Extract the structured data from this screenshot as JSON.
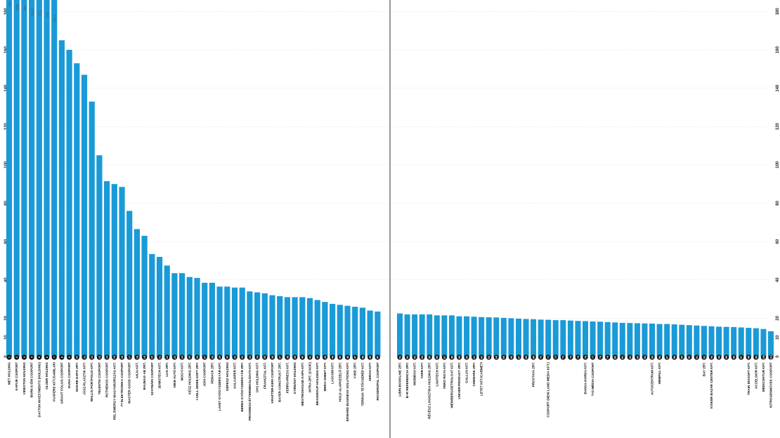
{
  "chart_data": {
    "type": "bar",
    "bar_color": "#1a9ad7",
    "divider_color": "#333333",
    "rank_marker_color": "#111111",
    "y_ticks": [
      0,
      10,
      20,
      40,
      60,
      80,
      100,
      120,
      140,
      160,
      180
    ],
    "ylim": [
      0,
      186
    ],
    "grid": true,
    "left_panel": {
      "categories": [
        "MET HOLDING",
        "KAFIJE CSOPORT",
        "VIDEOTON HOLDING",
        "BORKAI ÉM CSOPORT",
        "DAYTON INVESTMENTS (HOLDING)",
        "OLGER HOLDING",
        "FUXFERE KFT./SAMILARI",
        "GRAVIT FOLIUS CSOPORT",
        "DUNA CSOPORT",
        "MAKRE EXPO ZRT.",
        "JÁSZ-PLASZTIK KFT.",
        "WALLIS PORTFOLIO KFT.",
        "TELENTIS CSOPORT",
        "ROTHENOS CSOPORT",
        "REL EMERGY MAGYARORSZÁG KFT.",
        "77 ELEKTRONIKA CSOPORT",
        "MASTER GOOD CSOPORT",
        "ANJA KFT.",
        "BAUMAG AB ZRT.",
        "SZATMÁRI CSOPORT",
        "2DIMSTECH KFT.",
        "LUG ZRT.",
        "HBW AUTÓ KFT.",
        "MOGYI KFT.",
        "KÉSZ HOLDING ZRT.",
        "I-CELL MOBILSOFT ZRT.",
        "JOHI CSOPORT",
        "FEMACK ZRT.",
        "LAVET GYÓGYSZERGYÁR KFT.",
        "GÉPESZ HOLDING",
        "GALAXIPER KFT.",
        "BERES GYÓGYSZERGYÁR ZRT.",
        "PROGRESS ÉTTERMEHÁLÓZATI KFT.",
        "CHS HOLDING KFT.",
        "FRANSZTAL KFT.",
        "KRAFTÉR-KERI CSOPORT",
        "BAYER CONSTRUCT ZRT.",
        "FERRO-PRESS KFT.",
        "GYÉMÁNT HOLDING",
        "WESTINGHOUSE KAPA KFT.",
        "INTRA ZRT. (CSOP.)",
        "BRAIGROUP HOLDING KFT.",
        "MERA-SHEET KFT.",
        "LASCOM KFT.",
        "HOLD ALAPKEZELŐ ZRT.",
        "EDWARD BUSINESS SOLUTIONS KFT.",
        "V-BID ZRT.",
        "TERRAN TETŐCSERÉP KFT.",
        "XEROX KFT.",
        "RIGGEROPAL CSOPORT"
      ],
      "values": [
        186,
        186,
        186,
        186,
        186,
        186,
        186,
        165,
        160,
        153,
        147,
        133,
        105,
        91.5,
        90,
        88.5,
        76,
        66.5,
        63,
        53.5,
        52,
        47.5,
        43.5,
        43.5,
        41.5,
        41,
        38.5,
        38.5,
        36.5,
        36.5,
        36,
        36,
        34,
        33.5,
        33,
        32,
        31.5,
        31,
        31,
        31,
        30.5,
        29.5,
        28.5,
        27.5,
        27,
        26.5,
        26,
        25.5,
        24,
        23.5
      ],
      "top_value_labels": [
        "236",
        "1086",
        "383",
        "365.5",
        "310",
        "228",
        "203.3"
      ]
    },
    "right_panel": {
      "categories": [
        "LIBRI-BOOKLINE ZRT.",
        "B+R REFERENCIA ZRT.",
        "MOBIBOX KFT.",
        "TARR KFT.",
        "RÉVÉSZ LOGISZTIKA HOLDING ZRT.",
        "LIGHTECH KFT.",
        "FERO ROYA KFT.",
        "WEINBERG/SETROLOAT KFT.",
        "UNIVER-PRODUCT ZRT.",
        "GALLUS KFT.",
        "CHEMARK ZRT.",
        "LETET KFT./CARMETI",
        "",
        "",
        "",
        "",
        "",
        "",
        "PROSTAVA ZRT.",
        "",
        "CSOPORT (NEW LAND MEDIA KFT.)",
        "",
        "",
        "",
        "",
        "BANSA-KORDA KFT.",
        "TV2 MÉDIA CSOPORT",
        "",
        "",
        "",
        "",
        "",
        "",
        "",
        "AUTOCENTRUM KFT.",
        "WEBFILL KFT.",
        "",
        "",
        "",
        "",
        "",
        "BAY ZRT.",
        "KISKER BAZÁR CENTER KFT.",
        "",
        "",
        "",
        "",
        "TRAIN INGSOFT KFT.",
        "ACCELSIOR KFT.",
        "MEDICONTUR KFT.",
        "NITROGENMŰVEK CSOPORT"
      ],
      "values": [
        22.5,
        22,
        22,
        22,
        22,
        21.5,
        21.5,
        21.5,
        21,
        21,
        20.8,
        20.6,
        20.5,
        20.4,
        20.2,
        20,
        19.8,
        19.6,
        19.5,
        19.3,
        19.2,
        19,
        19,
        18.8,
        18.6,
        18.5,
        18.3,
        18.2,
        18,
        17.8,
        17.6,
        17.5,
        17.4,
        17.3,
        17.2,
        17,
        17,
        16.8,
        16.6,
        16.4,
        16.2,
        16,
        15.8,
        15.6,
        15.5,
        15.4,
        15.2,
        15,
        14.8,
        14.4,
        13.2
      ]
    }
  }
}
